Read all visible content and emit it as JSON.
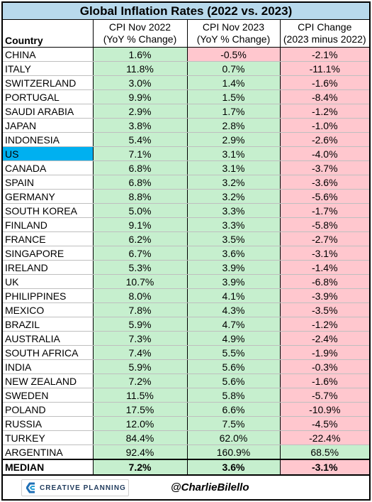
{
  "chart_data": {
    "type": "table",
    "title": "Global Inflation Rates (2022 vs. 2023)",
    "columns": [
      "Country",
      "CPI Nov 2022\n(YoY % Change)",
      "CPI Nov 2023\n(YoY % Change)",
      "CPI Change\n(2023 minus 2022)"
    ],
    "rows": [
      {
        "country": "CHINA",
        "cpi_2022": 1.6,
        "cpi_2023": -0.5,
        "change": -2.1
      },
      {
        "country": "ITALY",
        "cpi_2022": 11.8,
        "cpi_2023": 0.7,
        "change": -11.1
      },
      {
        "country": "SWITZERLAND",
        "cpi_2022": 3.0,
        "cpi_2023": 1.4,
        "change": -1.6
      },
      {
        "country": "PORTUGAL",
        "cpi_2022": 9.9,
        "cpi_2023": 1.5,
        "change": -8.4
      },
      {
        "country": "SAUDI ARABIA",
        "cpi_2022": 2.9,
        "cpi_2023": 1.7,
        "change": -1.2
      },
      {
        "country": "JAPAN",
        "cpi_2022": 3.8,
        "cpi_2023": 2.8,
        "change": -1.0
      },
      {
        "country": "INDONESIA",
        "cpi_2022": 5.4,
        "cpi_2023": 2.9,
        "change": -2.6
      },
      {
        "country": "US",
        "cpi_2022": 7.1,
        "cpi_2023": 3.1,
        "change": -4.0,
        "highlight": true
      },
      {
        "country": "CANADA",
        "cpi_2022": 6.8,
        "cpi_2023": 3.1,
        "change": -3.7
      },
      {
        "country": "SPAIN",
        "cpi_2022": 6.8,
        "cpi_2023": 3.2,
        "change": -3.6
      },
      {
        "country": "GERMANY",
        "cpi_2022": 8.8,
        "cpi_2023": 3.2,
        "change": -5.6
      },
      {
        "country": "SOUTH KOREA",
        "cpi_2022": 5.0,
        "cpi_2023": 3.3,
        "change": -1.7
      },
      {
        "country": "FINLAND",
        "cpi_2022": 9.1,
        "cpi_2023": 3.3,
        "change": -5.8
      },
      {
        "country": "FRANCE",
        "cpi_2022": 6.2,
        "cpi_2023": 3.5,
        "change": -2.7
      },
      {
        "country": "SINGAPORE",
        "cpi_2022": 6.7,
        "cpi_2023": 3.6,
        "change": -3.1
      },
      {
        "country": "IRELAND",
        "cpi_2022": 5.3,
        "cpi_2023": 3.9,
        "change": -1.4
      },
      {
        "country": "UK",
        "cpi_2022": 10.7,
        "cpi_2023": 3.9,
        "change": -6.8
      },
      {
        "country": "PHILIPPINES",
        "cpi_2022": 8.0,
        "cpi_2023": 4.1,
        "change": -3.9
      },
      {
        "country": "MEXICO",
        "cpi_2022": 7.8,
        "cpi_2023": 4.3,
        "change": -3.5
      },
      {
        "country": "BRAZIL",
        "cpi_2022": 5.9,
        "cpi_2023": 4.7,
        "change": -1.2
      },
      {
        "country": "AUSTRALIA",
        "cpi_2022": 7.3,
        "cpi_2023": 4.9,
        "change": -2.4
      },
      {
        "country": "SOUTH AFRICA",
        "cpi_2022": 7.4,
        "cpi_2023": 5.5,
        "change": -1.9
      },
      {
        "country": "INDIA",
        "cpi_2022": 5.9,
        "cpi_2023": 5.6,
        "change": -0.3
      },
      {
        "country": "NEW ZEALAND",
        "cpi_2022": 7.2,
        "cpi_2023": 5.6,
        "change": -1.6
      },
      {
        "country": "SWEDEN",
        "cpi_2022": 11.5,
        "cpi_2023": 5.8,
        "change": -5.7
      },
      {
        "country": "POLAND",
        "cpi_2022": 17.5,
        "cpi_2023": 6.6,
        "change": -10.9
      },
      {
        "country": "RUSSIA",
        "cpi_2022": 12.0,
        "cpi_2023": 7.5,
        "change": -4.5
      },
      {
        "country": "TURKEY",
        "cpi_2022": 84.4,
        "cpi_2023": 62.0,
        "change": -22.4
      },
      {
        "country": "ARGENTINA",
        "cpi_2022": 92.4,
        "cpi_2023": 160.9,
        "change": 68.5
      }
    ],
    "median": {
      "label": "MEDIAN",
      "cpi_2022": 7.2,
      "cpi_2023": 3.6,
      "change": -3.1
    }
  },
  "colors": {
    "title_bg": "#b8d9ec",
    "positive_bg": "#c6efce",
    "negative_bg": "#ffc7ce",
    "highlight_bg": "#00b0f0"
  },
  "footer": {
    "logo_text": "CREATIVE PLANNING",
    "logo_icon": "creative-planning-c-logo",
    "handle": "@CharlieBilello"
  }
}
